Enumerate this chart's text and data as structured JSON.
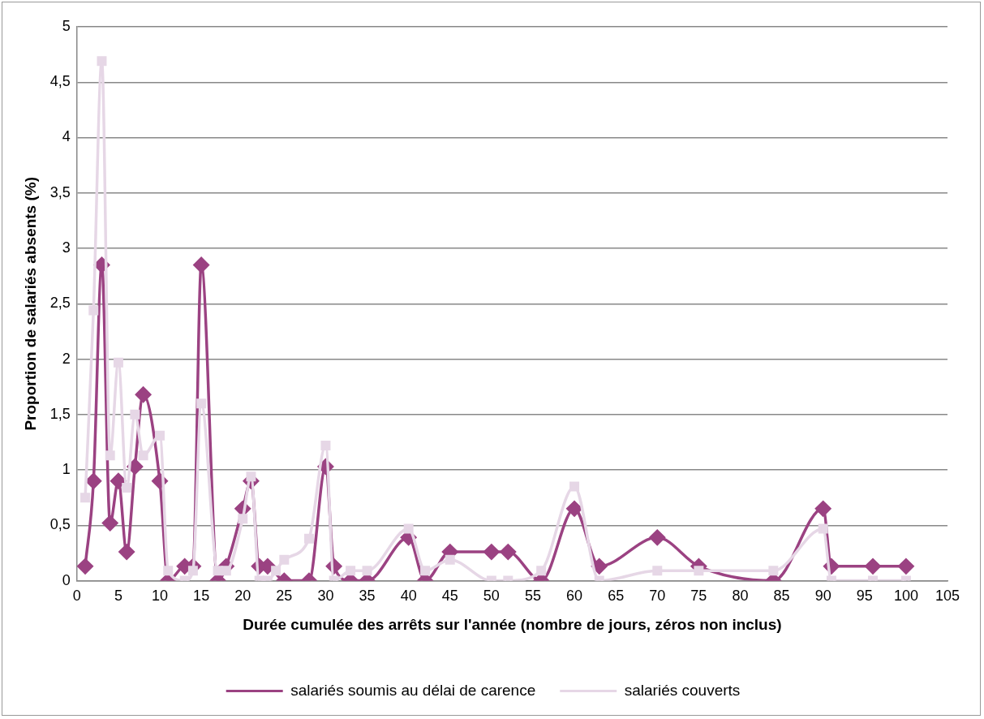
{
  "chart_data": {
    "type": "line",
    "xlabel": "Durée cumulée des arrêts sur l'année (nombre de jours, zéros non inclus)",
    "ylabel": "Proportion de salariés absents (%)",
    "xlim": [
      0,
      105
    ],
    "xticks": [
      0,
      5,
      10,
      15,
      20,
      25,
      30,
      35,
      40,
      45,
      50,
      55,
      60,
      65,
      70,
      75,
      80,
      85,
      90,
      95,
      100,
      105
    ],
    "ylim": [
      0,
      5
    ],
    "yticks": [
      0,
      {
        "value": 0.5,
        "label": "0,5"
      },
      1,
      {
        "value": 1.5,
        "label": "1,5"
      },
      2,
      {
        "value": 2.5,
        "label": "2,5"
      },
      3,
      {
        "value": 3.5,
        "label": "3,5"
      },
      4,
      {
        "value": 4.5,
        "label": "4,5"
      },
      5
    ],
    "grid": "y",
    "legend": "bottom",
    "x": [
      1,
      2,
      3,
      4,
      5,
      6,
      7,
      8,
      10,
      11,
      13,
      14,
      15,
      17,
      18,
      20,
      21,
      22,
      23,
      24,
      25,
      28,
      30,
      31,
      33,
      35,
      40,
      42,
      45,
      50,
      52,
      56,
      60,
      63,
      70,
      75,
      84,
      90,
      91,
      96,
      100
    ],
    "series": [
      {
        "name": "salariés soumis au délai de carence",
        "color": "#9b4282",
        "marker": "diamond",
        "values": [
          0.13,
          0.9,
          2.85,
          0.52,
          0.9,
          0.26,
          1.03,
          1.68,
          0.9,
          0,
          0.13,
          0.13,
          2.85,
          0,
          0.13,
          0.65,
          0.9,
          0.13,
          0.13,
          null,
          0,
          0,
          1.03,
          0.13,
          0,
          0,
          0.39,
          0,
          0.26,
          0.26,
          0.26,
          0,
          0.65,
          0.13,
          0.39,
          0.13,
          0,
          0.65,
          0.13,
          0.13,
          0.13
        ]
      },
      {
        "name": "salariés couverts",
        "color": "#e6d7e6",
        "marker": "square",
        "values": [
          0.75,
          2.44,
          4.69,
          1.13,
          1.97,
          0.84,
          1.5,
          1.13,
          1.31,
          0.09,
          0,
          0.09,
          1.6,
          0.09,
          0.09,
          0.56,
          0.94,
          0,
          0,
          0.09,
          0.19,
          0.38,
          1.22,
          0,
          0.09,
          0.09,
          0.47,
          0.09,
          0.19,
          0,
          0,
          0.09,
          0.85,
          0,
          0.09,
          0.09,
          0.09,
          0.47,
          0,
          0,
          0
        ]
      }
    ]
  }
}
